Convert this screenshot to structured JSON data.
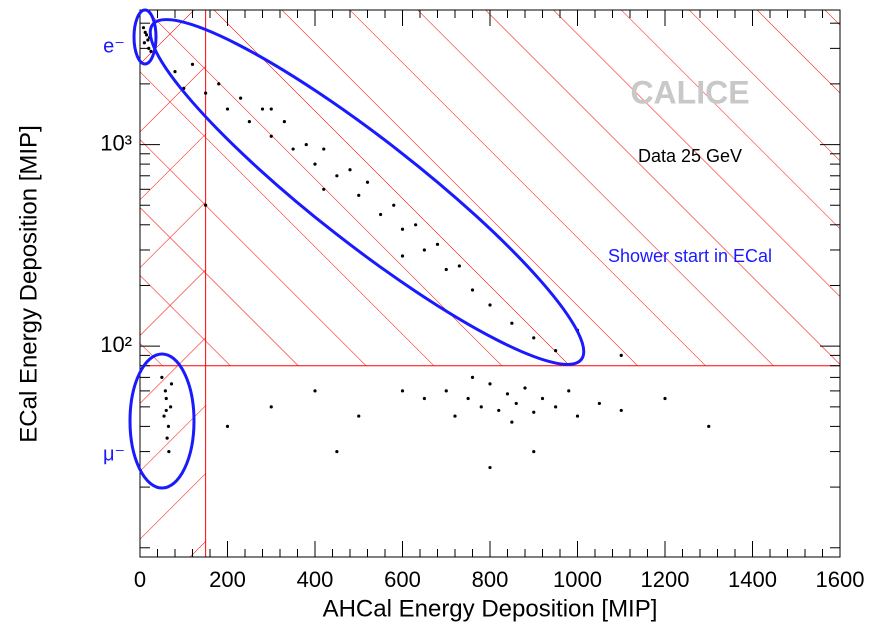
{
  "chart_data": {
    "type": "scatter",
    "xlabel": "AHCal Energy Deposition [MIP]",
    "ylabel": "ECal Energy Deposition [MIP]",
    "annotations": [
      "CALICE",
      "Data 25 GeV",
      "Shower start in ECal",
      "e⁻",
      "μ⁻"
    ],
    "color": "#000000",
    "x": [
      10,
      15,
      20,
      8,
      18,
      25,
      12,
      22,
      80,
      100,
      120,
      150,
      180,
      200,
      230,
      250,
      280,
      300,
      330,
      350,
      380,
      400,
      420,
      450,
      480,
      500,
      520,
      550,
      580,
      600,
      630,
      650,
      680,
      700,
      730,
      760,
      800,
      850,
      900,
      950,
      420,
      300,
      600,
      700,
      720,
      750,
      780,
      800,
      820,
      840,
      860,
      880,
      900,
      920,
      950,
      980,
      1000,
      760,
      850,
      650,
      1050,
      600,
      1100,
      55,
      60,
      65,
      58,
      62,
      70,
      50,
      66,
      60,
      72,
      300,
      400,
      500,
      200,
      1200,
      1300,
      900,
      800,
      1000,
      1100,
      450,
      150
    ],
    "values": [
      3200,
      3500,
      3000,
      3800,
      3300,
      2900,
      3600,
      3400,
      2300,
      1900,
      2500,
      1800,
      2000,
      1500,
      1700,
      1300,
      1500,
      1100,
      1300,
      950,
      1000,
      800,
      950,
      700,
      750,
      560,
      650,
      450,
      500,
      380,
      400,
      300,
      320,
      240,
      250,
      190,
      160,
      130,
      110,
      95,
      600,
      1500,
      280,
      60,
      45,
      55,
      50,
      65,
      48,
      58,
      52,
      62,
      47,
      55,
      50,
      60,
      45,
      70,
      42,
      55,
      52,
      60,
      48,
      45,
      55,
      40,
      60,
      35,
      50,
      70,
      30,
      48,
      65,
      50,
      60,
      45,
      40,
      55,
      40,
      30,
      25,
      120,
      90,
      30,
      500
    ],
    "xlim": [
      0,
      1600
    ],
    "xticks": [
      0,
      200,
      400,
      600,
      800,
      1000,
      1200,
      1400,
      1600
    ],
    "xticks_minor": [
      40,
      80,
      120,
      160,
      240,
      280,
      320,
      360,
      440,
      480,
      520,
      560,
      640,
      680,
      720,
      760,
      840,
      880,
      920,
      960,
      1040,
      1080,
      1120,
      1160,
      1240,
      1280,
      1320,
      1360,
      1440,
      1480,
      1520,
      1560
    ],
    "ylim": [
      9,
      4650
    ],
    "log_y": true,
    "yticks": [
      {
        "value": 100,
        "label": "10²"
      },
      {
        "value": 1000,
        "label": "10³"
      }
    ],
    "yticks_minor": [
      10,
      20,
      30,
      40,
      50,
      60,
      70,
      80,
      90,
      200,
      300,
      400,
      500,
      600,
      700,
      800,
      900,
      2000,
      3000,
      4000
    ],
    "cuts": [
      {
        "axis": "x",
        "value": 150,
        "color": "#ff0000"
      },
      {
        "axis": "y",
        "value": 80,
        "color": "#ff0000"
      }
    ]
  }
}
